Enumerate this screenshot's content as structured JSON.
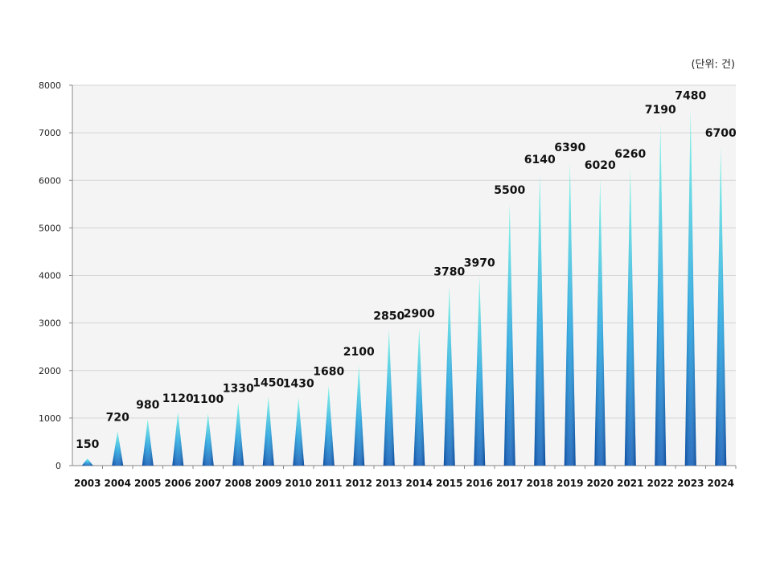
{
  "unit_label": "(단위: 건)",
  "chart_data": {
    "type": "bar",
    "categories": [
      "2003",
      "2004",
      "2005",
      "2006",
      "2007",
      "2008",
      "2009",
      "2010",
      "2011",
      "2012",
      "2013",
      "2014",
      "2015",
      "2016",
      "2017",
      "2018",
      "2019",
      "2020",
      "2021",
      "2022",
      "2023",
      "2024"
    ],
    "values": [
      150,
      720,
      980,
      1120,
      1100,
      1330,
      1450,
      1430,
      1680,
      2100,
      2850,
      2900,
      3780,
      3970,
      5500,
      6140,
      6390,
      6020,
      6260,
      7190,
      7480,
      6700
    ],
    "data_labels": [
      "150",
      "720",
      "980",
      "1120",
      "1100",
      "1330",
      "1450",
      "1430",
      "1680",
      "2100",
      "2850",
      "2900",
      "3780",
      "3970",
      "5500",
      "6140",
      "6390",
      "6020",
      "6260",
      "7190",
      "7480",
      "6700"
    ],
    "title": "",
    "xlabel": "",
    "ylabel": "",
    "ylim": [
      0,
      8000
    ],
    "yticks": [
      "0",
      "1000",
      "2000",
      "3000",
      "4000",
      "5000",
      "6000",
      "7000",
      "8000"
    ],
    "grid": true,
    "legend": "none",
    "colors": {
      "bar_dark": "#0a4fa8",
      "bar_mid": "#1fa3e0",
      "bar_top": "#5ff0e0",
      "plot_bg": "#f4f4f4",
      "grid": "#d4d4d4"
    }
  }
}
